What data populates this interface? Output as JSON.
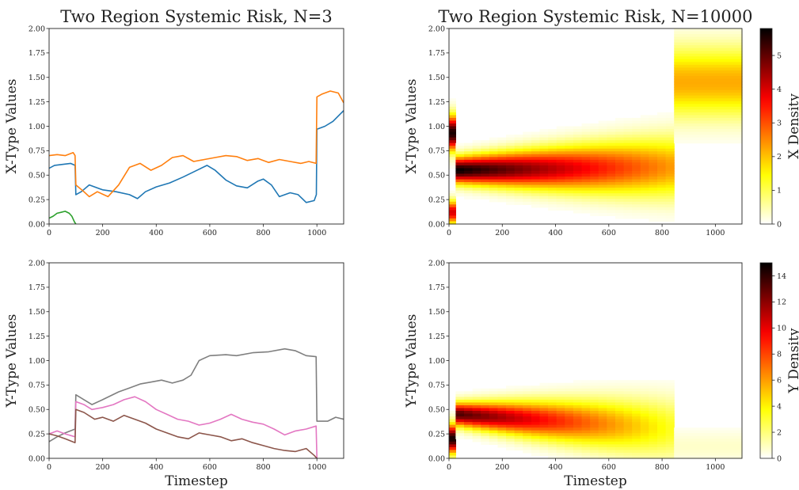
{
  "chart_data": [
    {
      "id": "tl",
      "type": "line",
      "title": "Two Region Systemic Risk, N=3",
      "xlabel": "",
      "ylabel": "X-Type Values",
      "xlim": [
        0,
        1100
      ],
      "ylim": [
        0,
        2.0
      ],
      "xticks": [
        0,
        200,
        400,
        600,
        800,
        1000
      ],
      "yticks": [
        "0.00",
        "0.25",
        "0.50",
        "0.75",
        "1.00",
        "1.25",
        "1.50",
        "1.75",
        "2.00"
      ],
      "series": [
        {
          "color": "#1f77b4",
          "points": [
            [
              0,
              0.57
            ],
            [
              20,
              0.6
            ],
            [
              50,
              0.61
            ],
            [
              80,
              0.62
            ],
            [
              97,
              0.6
            ],
            [
              100,
              0.3
            ],
            [
              120,
              0.33
            ],
            [
              150,
              0.4
            ],
            [
              200,
              0.35
            ],
            [
              250,
              0.33
            ],
            [
              300,
              0.3
            ],
            [
              330,
              0.26
            ],
            [
              360,
              0.33
            ],
            [
              400,
              0.38
            ],
            [
              450,
              0.42
            ],
            [
              500,
              0.48
            ],
            [
              560,
              0.56
            ],
            [
              590,
              0.6
            ],
            [
              620,
              0.55
            ],
            [
              660,
              0.45
            ],
            [
              700,
              0.39
            ],
            [
              740,
              0.37
            ],
            [
              780,
              0.44
            ],
            [
              800,
              0.46
            ],
            [
              830,
              0.4
            ],
            [
              860,
              0.28
            ],
            [
              900,
              0.32
            ],
            [
              930,
              0.3
            ],
            [
              960,
              0.22
            ],
            [
              990,
              0.24
            ],
            [
              998,
              0.3
            ],
            [
              1000,
              0.97
            ],
            [
              1030,
              1.0
            ],
            [
              1060,
              1.05
            ],
            [
              1100,
              1.16
            ]
          ]
        },
        {
          "color": "#ff7f0e",
          "points": [
            [
              0,
              0.7
            ],
            [
              30,
              0.71
            ],
            [
              60,
              0.7
            ],
            [
              90,
              0.73
            ],
            [
              97,
              0.7
            ],
            [
              100,
              0.4
            ],
            [
              130,
              0.33
            ],
            [
              150,
              0.28
            ],
            [
              180,
              0.33
            ],
            [
              220,
              0.28
            ],
            [
              260,
              0.4
            ],
            [
              300,
              0.58
            ],
            [
              340,
              0.62
            ],
            [
              380,
              0.55
            ],
            [
              420,
              0.6
            ],
            [
              460,
              0.68
            ],
            [
              500,
              0.7
            ],
            [
              540,
              0.64
            ],
            [
              580,
              0.66
            ],
            [
              620,
              0.68
            ],
            [
              660,
              0.7
            ],
            [
              700,
              0.69
            ],
            [
              740,
              0.65
            ],
            [
              780,
              0.67
            ],
            [
              820,
              0.63
            ],
            [
              860,
              0.66
            ],
            [
              900,
              0.64
            ],
            [
              940,
              0.62
            ],
            [
              970,
              0.64
            ],
            [
              997,
              0.62
            ],
            [
              1000,
              1.3
            ],
            [
              1020,
              1.33
            ],
            [
              1050,
              1.36
            ],
            [
              1080,
              1.34
            ],
            [
              1100,
              1.24
            ]
          ]
        },
        {
          "color": "#2ca02c",
          "points": [
            [
              0,
              0.06
            ],
            [
              15,
              0.08
            ],
            [
              30,
              0.11
            ],
            [
              45,
              0.12
            ],
            [
              60,
              0.13
            ],
            [
              75,
              0.11
            ],
            [
              85,
              0.08
            ],
            [
              95,
              0.02
            ],
            [
              100,
              0.0
            ]
          ]
        }
      ]
    },
    {
      "id": "tr",
      "type": "heatmap",
      "title": "Two Region Systemic Risk, N=10000",
      "xlabel": "",
      "ylabel": "X-Type Values",
      "colorbar_label": "X Density",
      "colorbar_ticks": [
        0,
        1,
        2,
        3,
        4,
        5
      ],
      "colorbar_max": 5.8,
      "xlim": [
        0,
        1100
      ],
      "ylim": [
        0,
        2.0
      ],
      "xticks": [
        0,
        200,
        400,
        600,
        800,
        1000
      ],
      "yticks": [
        "0.00",
        "0.25",
        "0.50",
        "0.75",
        "1.00",
        "1.25",
        "1.50",
        "1.75",
        "2.00"
      ],
      "bands": [
        {
          "x0": 0,
          "x1": 25,
          "center": 0.93,
          "sd": 0.12,
          "peak": 5.6
        },
        {
          "x0": 0,
          "x1": 25,
          "center": 0.12,
          "sd": 0.08,
          "peak": 4.0
        },
        {
          "x0": 25,
          "x1": 845,
          "center_start": 0.55,
          "center_end": 0.58,
          "sd_start": 0.09,
          "sd_end": 0.22,
          "peak_start": 5.8,
          "peak_end": 2.3
        },
        {
          "x0": 845,
          "x1": 1100,
          "center": 1.45,
          "sd": 0.25,
          "peak": 2.2
        }
      ]
    },
    {
      "id": "bl",
      "type": "line",
      "title": "",
      "xlabel": "Timestep",
      "ylabel": "Y-Type Values",
      "xlim": [
        0,
        1100
      ],
      "ylim": [
        0,
        2.0
      ],
      "xticks": [
        0,
        200,
        400,
        600,
        800,
        1000
      ],
      "yticks": [
        "0.00",
        "0.25",
        "0.50",
        "0.75",
        "1.00",
        "1.25",
        "1.50",
        "1.75",
        "2.00"
      ],
      "series": [
        {
          "color": "#7f7f7f",
          "points": [
            [
              0,
              0.17
            ],
            [
              30,
              0.22
            ],
            [
              60,
              0.26
            ],
            [
              97,
              0.3
            ],
            [
              100,
              0.65
            ],
            [
              130,
              0.6
            ],
            [
              160,
              0.55
            ],
            [
              200,
              0.6
            ],
            [
              260,
              0.68
            ],
            [
              300,
              0.72
            ],
            [
              340,
              0.76
            ],
            [
              380,
              0.78
            ],
            [
              420,
              0.8
            ],
            [
              460,
              0.77
            ],
            [
              500,
              0.8
            ],
            [
              530,
              0.85
            ],
            [
              560,
              1.0
            ],
            [
              600,
              1.05
            ],
            [
              660,
              1.06
            ],
            [
              700,
              1.05
            ],
            [
              760,
              1.08
            ],
            [
              820,
              1.09
            ],
            [
              880,
              1.12
            ],
            [
              920,
              1.1
            ],
            [
              960,
              1.05
            ],
            [
              997,
              1.04
            ],
            [
              1000,
              0.38
            ],
            [
              1040,
              0.38
            ],
            [
              1070,
              0.42
            ],
            [
              1100,
              0.4
            ]
          ]
        },
        {
          "color": "#e377c2",
          "points": [
            [
              0,
              0.25
            ],
            [
              30,
              0.28
            ],
            [
              60,
              0.25
            ],
            [
              97,
              0.22
            ],
            [
              100,
              0.58
            ],
            [
              130,
              0.55
            ],
            [
              160,
              0.5
            ],
            [
              200,
              0.52
            ],
            [
              240,
              0.55
            ],
            [
              280,
              0.6
            ],
            [
              320,
              0.63
            ],
            [
              360,
              0.58
            ],
            [
              400,
              0.5
            ],
            [
              440,
              0.45
            ],
            [
              480,
              0.4
            ],
            [
              520,
              0.38
            ],
            [
              560,
              0.34
            ],
            [
              600,
              0.36
            ],
            [
              640,
              0.4
            ],
            [
              680,
              0.45
            ],
            [
              720,
              0.4
            ],
            [
              760,
              0.37
            ],
            [
              800,
              0.35
            ],
            [
              840,
              0.3
            ],
            [
              880,
              0.24
            ],
            [
              920,
              0.28
            ],
            [
              960,
              0.3
            ],
            [
              997,
              0.33
            ],
            [
              1000,
              0.0
            ]
          ]
        },
        {
          "color": "#8c564b",
          "points": [
            [
              0,
              0.25
            ],
            [
              30,
              0.23
            ],
            [
              60,
              0.2
            ],
            [
              97,
              0.16
            ],
            [
              100,
              0.5
            ],
            [
              130,
              0.47
            ],
            [
              170,
              0.4
            ],
            [
              200,
              0.42
            ],
            [
              240,
              0.38
            ],
            [
              280,
              0.44
            ],
            [
              320,
              0.4
            ],
            [
              360,
              0.36
            ],
            [
              400,
              0.3
            ],
            [
              440,
              0.26
            ],
            [
              480,
              0.22
            ],
            [
              520,
              0.2
            ],
            [
              560,
              0.26
            ],
            [
              600,
              0.24
            ],
            [
              640,
              0.22
            ],
            [
              680,
              0.18
            ],
            [
              720,
              0.2
            ],
            [
              760,
              0.16
            ],
            [
              800,
              0.13
            ],
            [
              840,
              0.1
            ],
            [
              880,
              0.08
            ],
            [
              920,
              0.07
            ],
            [
              960,
              0.1
            ],
            [
              990,
              0.03
            ],
            [
              1000,
              0.0
            ]
          ]
        }
      ]
    },
    {
      "id": "br",
      "type": "heatmap",
      "title": "",
      "xlabel": "Timestep",
      "ylabel": "Y-Type Values",
      "colorbar_label": "Y Density",
      "colorbar_ticks": [
        0,
        2,
        4,
        6,
        8,
        10,
        12,
        14
      ],
      "colorbar_max": 15,
      "xlim": [
        0,
        1100
      ],
      "ylim": [
        0,
        2.0
      ],
      "xticks": [
        0,
        200,
        400,
        600,
        800,
        1000
      ],
      "yticks": [
        "0.00",
        "0.25",
        "0.50",
        "0.75",
        "1.00",
        "1.25",
        "1.50",
        "1.75",
        "2.00"
      ],
      "bands": [
        {
          "x0": 0,
          "x1": 25,
          "center": 0.2,
          "sd": 0.1,
          "peak": 14.5
        },
        {
          "x0": 25,
          "x1": 845,
          "center_start": 0.45,
          "center_end": 0.3,
          "sd_start": 0.08,
          "sd_end": 0.22,
          "peak_start": 13.5,
          "peak_end": 3.2
        },
        {
          "x0": 845,
          "x1": 1100,
          "center": 0.12,
          "sd": 0.12,
          "peak": 0.8
        }
      ]
    }
  ]
}
